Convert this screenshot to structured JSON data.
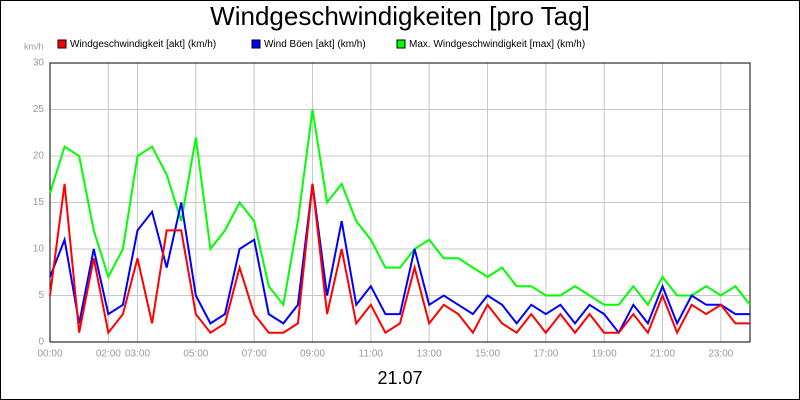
{
  "chart_data": {
    "type": "line",
    "title": "Windgeschwindigkeiten [pro Tag]",
    "ylabel": "km/h",
    "xlabel": "21.07",
    "x": [
      0,
      0.5,
      1,
      1.5,
      2,
      2.5,
      3,
      3.5,
      4,
      4.5,
      5,
      5.5,
      6,
      6.5,
      7,
      7.5,
      8,
      8.5,
      9,
      9.5,
      10,
      10.5,
      11,
      11.5,
      12,
      12.5,
      13,
      13.5,
      14,
      14.5,
      15,
      15.5,
      16,
      16.5,
      17,
      17.5,
      18,
      18.5,
      19,
      19.5,
      20,
      20.5,
      21,
      21.5,
      22,
      22.5,
      23,
      23.5,
      24
    ],
    "series": [
      {
        "name": "Windgeschwindigkeit [akt] (km/h)",
        "color": "#ff0000",
        "values": [
          5,
          17,
          1,
          9,
          1,
          3,
          9,
          2,
          12,
          12,
          3,
          1,
          2,
          8,
          3,
          1,
          1,
          2,
          17,
          3,
          10,
          2,
          4,
          1,
          2,
          8,
          2,
          4,
          3,
          1,
          4,
          2,
          1,
          3,
          1,
          3,
          1,
          3,
          1,
          1,
          3,
          1,
          5,
          1,
          4,
          3,
          4,
          2,
          2
        ]
      },
      {
        "name": "Wind Böen [akt] (km/h)",
        "color": "#0000ff",
        "values": [
          7,
          11,
          2,
          10,
          3,
          4,
          12,
          14,
          8,
          15,
          5,
          2,
          3,
          10,
          11,
          3,
          2,
          4,
          17,
          5,
          13,
          4,
          6,
          3,
          3,
          10,
          4,
          5,
          4,
          3,
          5,
          4,
          2,
          4,
          3,
          4,
          2,
          4,
          3,
          1,
          4,
          2,
          6,
          2,
          5,
          4,
          4,
          3,
          3
        ]
      },
      {
        "name": "Max. Windgeschwindigkeit [max] (km/h)",
        "color": "#00ff00",
        "values": [
          16,
          21,
          20,
          12,
          7,
          10,
          20,
          21,
          18,
          13,
          22,
          10,
          12,
          15,
          13,
          6,
          4,
          13,
          25,
          15,
          17,
          13,
          11,
          8,
          8,
          10,
          11,
          9,
          9,
          8,
          7,
          8,
          6,
          6,
          5,
          5,
          6,
          5,
          4,
          4,
          6,
          4,
          7,
          5,
          5,
          6,
          5,
          6,
          4
        ]
      }
    ],
    "xlim": [
      0,
      24
    ],
    "xticks": [
      {
        "value": 0,
        "label": "00:00"
      },
      {
        "value": 2,
        "label": "02:00"
      },
      {
        "value": 3,
        "label": "03:00"
      },
      {
        "value": 5,
        "label": "05:00"
      },
      {
        "value": 7,
        "label": "07:00"
      },
      {
        "value": 9,
        "label": "09:00"
      },
      {
        "value": 11,
        "label": "11:00"
      },
      {
        "value": 13,
        "label": "13:00"
      },
      {
        "value": 15,
        "label": "15:00"
      },
      {
        "value": 17,
        "label": "17:00"
      },
      {
        "value": 19,
        "label": "19:00"
      },
      {
        "value": 21,
        "label": "21:00"
      },
      {
        "value": 23,
        "label": "23:00"
      }
    ],
    "ylim": [
      0,
      30
    ],
    "yticks": [
      0,
      5,
      10,
      15,
      20,
      25,
      30
    ],
    "grid": true
  }
}
